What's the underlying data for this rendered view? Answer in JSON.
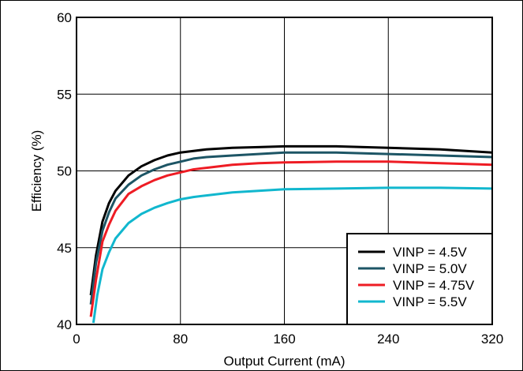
{
  "chart_data": {
    "type": "line",
    "xlabel": "Output Current (mA)",
    "ylabel": "Efficiency (%)",
    "xlim": [
      0,
      320
    ],
    "ylim": [
      40,
      60
    ],
    "xticks": [
      0,
      80,
      160,
      240,
      320
    ],
    "xtick_labels": [
      "0",
      "80",
      "160",
      "240",
      "320"
    ],
    "yticks": [
      40,
      45,
      50,
      55,
      60
    ],
    "ytick_labels": [
      "40",
      "45",
      "50",
      "55",
      "60"
    ],
    "grid": true,
    "legend_position": "bottom-right",
    "series": [
      {
        "name": "VINP = 4.5V",
        "color": "#000000",
        "x": [
          11,
          15,
          20,
          25,
          30,
          40,
          50,
          60,
          70,
          80,
          90,
          100,
          120,
          140,
          160,
          200,
          240,
          280,
          320
        ],
        "y": [
          41.9,
          44.5,
          46.7,
          47.9,
          48.7,
          49.7,
          50.3,
          50.7,
          51.0,
          51.2,
          51.3,
          51.4,
          51.5,
          51.55,
          51.6,
          51.6,
          51.5,
          51.4,
          51.2
        ]
      },
      {
        "name": "VINP = 5.0V",
        "color": "#1d5565",
        "x": [
          11,
          15,
          20,
          25,
          30,
          40,
          50,
          60,
          70,
          80,
          90,
          100,
          120,
          140,
          160,
          200,
          240,
          280,
          320
        ],
        "y": [
          41.3,
          44.0,
          46.1,
          47.3,
          48.2,
          49.1,
          49.7,
          50.1,
          50.4,
          50.6,
          50.8,
          50.9,
          51.0,
          51.1,
          51.2,
          51.2,
          51.1,
          51.0,
          50.9
        ]
      },
      {
        "name": "VINP = 4.75V",
        "color": "#ee1c24",
        "x": [
          11,
          15,
          20,
          25,
          30,
          40,
          50,
          60,
          70,
          80,
          90,
          100,
          120,
          140,
          160,
          200,
          240,
          280,
          320
        ],
        "y": [
          40.5,
          42.9,
          45.4,
          46.5,
          47.4,
          48.5,
          49.0,
          49.4,
          49.7,
          49.9,
          50.1,
          50.2,
          50.4,
          50.5,
          50.55,
          50.6,
          50.6,
          50.5,
          50.4
        ]
      },
      {
        "name": "VINP = 5.5V",
        "color": "#11b7ce",
        "x": [
          13,
          16,
          20,
          25,
          30,
          40,
          50,
          60,
          70,
          80,
          90,
          100,
          120,
          140,
          160,
          200,
          240,
          280,
          320
        ],
        "y": [
          40.1,
          41.9,
          43.6,
          44.7,
          45.6,
          46.6,
          47.2,
          47.6,
          47.9,
          48.15,
          48.3,
          48.4,
          48.6,
          48.7,
          48.8,
          48.85,
          48.9,
          48.9,
          48.85
        ]
      }
    ]
  }
}
